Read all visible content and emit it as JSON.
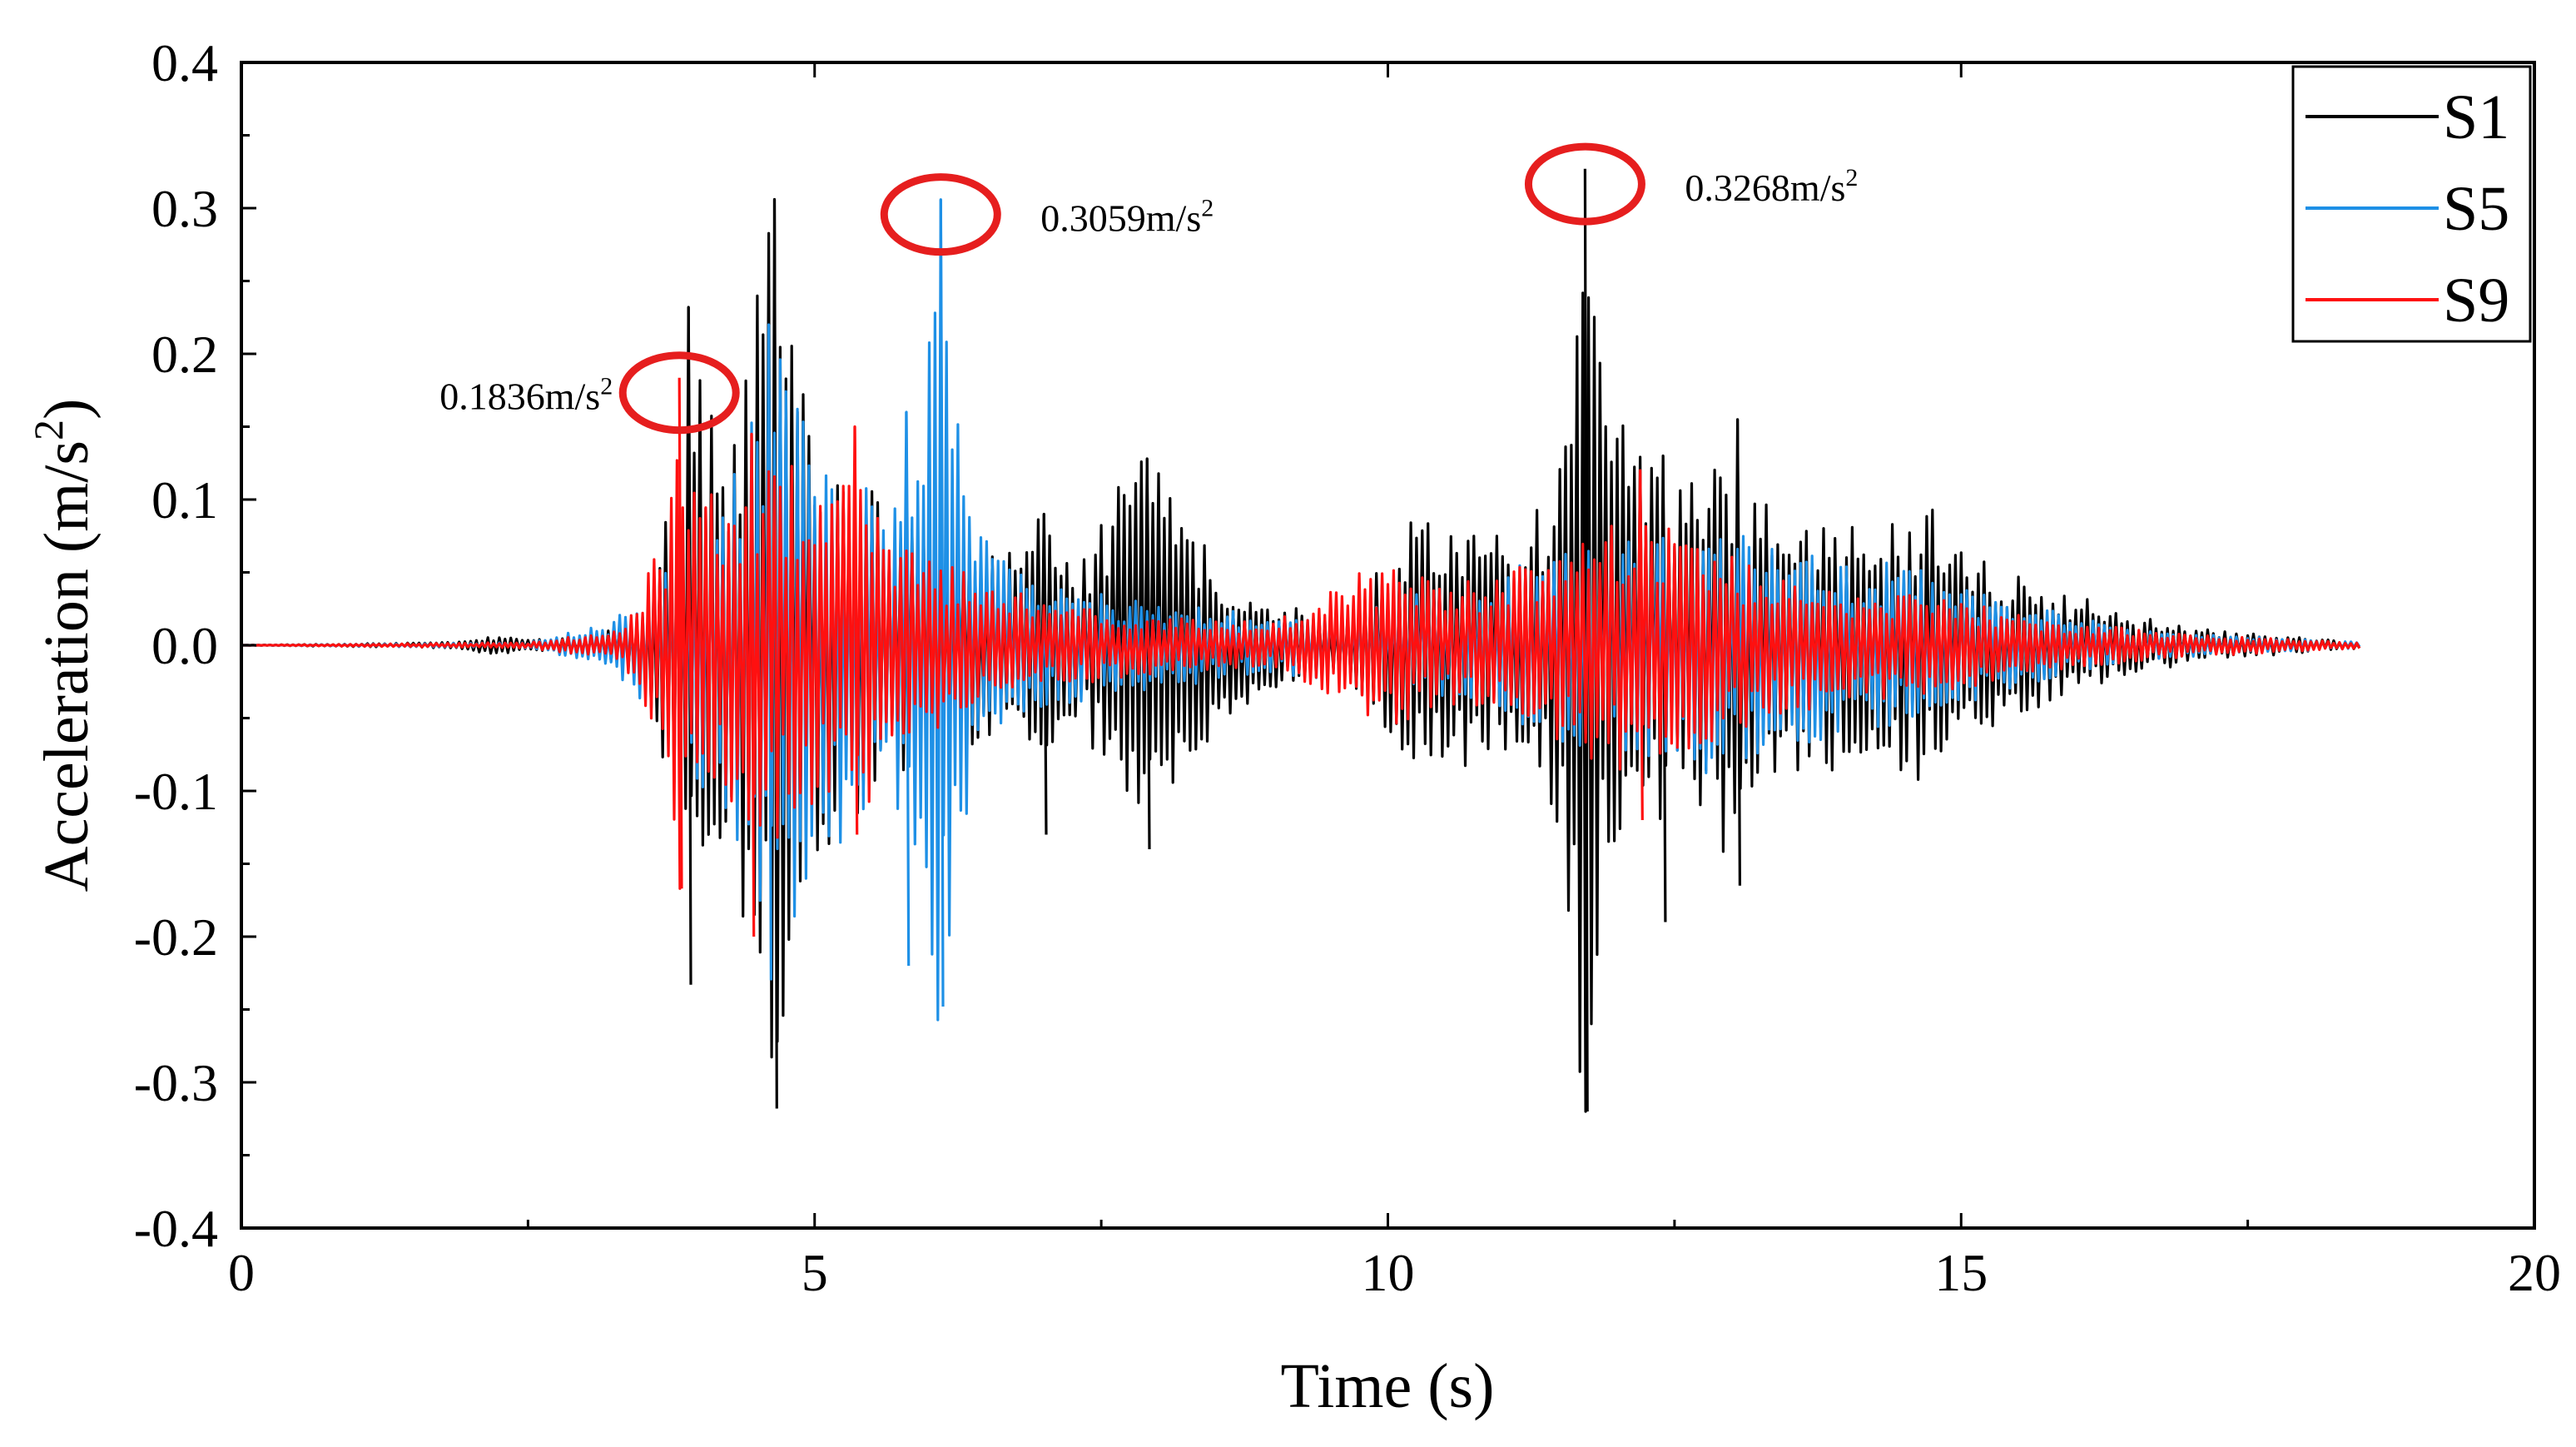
{
  "chart_data": {
    "type": "line",
    "title": "",
    "xlabel": "Time (s)",
    "ylabel_main": "Acceleration (m/s",
    "ylabel_sup": "2",
    "ylabel_close": ")",
    "xlim": [
      0,
      20
    ],
    "ylim": [
      -0.4,
      0.4
    ],
    "xticks": [
      0,
      5,
      10,
      15,
      20
    ],
    "xtick_labels": [
      "0",
      "5",
      "10",
      "15",
      "20"
    ],
    "yticks": [
      -0.4,
      -0.3,
      -0.2,
      -0.1,
      0.0,
      0.1,
      0.2,
      0.3,
      0.4
    ],
    "ytick_labels": [
      "-0.4",
      "-0.3",
      "-0.2",
      "-0.1",
      "0.0",
      "0.1",
      "0.2",
      "0.3",
      "0.4"
    ],
    "grid": false,
    "legend_position": "top-right",
    "series": [
      {
        "name": "S1",
        "color": "#000000",
        "envelope": [
          [
            0,
            0
          ],
          [
            1.8,
            0.002
          ],
          [
            2.2,
            0.006
          ],
          [
            3.0,
            0.004
          ],
          [
            3.5,
            0.02
          ],
          [
            3.8,
            0.12
          ],
          [
            3.9,
            0.23
          ],
          [
            4.2,
            0.14
          ],
          [
            4.4,
            0.2
          ],
          [
            4.65,
            0.32
          ],
          [
            4.9,
            0.18
          ],
          [
            5.3,
            0.12
          ],
          [
            5.8,
            0.09
          ],
          [
            6.2,
            0.08
          ],
          [
            6.6,
            0.06
          ],
          [
            7.0,
            0.09
          ],
          [
            7.3,
            0.05
          ],
          [
            7.6,
            0.11
          ],
          [
            7.9,
            0.13
          ],
          [
            8.2,
            0.1
          ],
          [
            8.5,
            0.06
          ],
          [
            9.0,
            0.03
          ],
          [
            9.5,
            0.02
          ],
          [
            10.0,
            0.06
          ],
          [
            10.3,
            0.1
          ],
          [
            10.8,
            0.08
          ],
          [
            11.2,
            0.07
          ],
          [
            11.5,
            0.14
          ],
          [
            11.7,
            0.33
          ],
          [
            11.85,
            0.2
          ],
          [
            12.2,
            0.16
          ],
          [
            12.5,
            0.1
          ],
          [
            12.9,
            0.15
          ],
          [
            13.2,
            0.1
          ],
          [
            13.8,
            0.09
          ],
          [
            14.3,
            0.08
          ],
          [
            14.8,
            0.1
          ],
          [
            15.2,
            0.06
          ],
          [
            15.8,
            0.04
          ],
          [
            16.5,
            0.02
          ],
          [
            17.2,
            0.01
          ],
          [
            18.5,
            0.002
          ]
        ],
        "peaks": [
          [
            3.9,
            0.232,
            -0.233
          ],
          [
            4.65,
            0.306,
            -0.318
          ],
          [
            7.0,
            0.09,
            -0.13
          ],
          [
            7.9,
            0.128,
            -0.14
          ],
          [
            11.72,
            0.327,
            -0.32
          ],
          [
            12.4,
            0.13,
            -0.19
          ],
          [
            13.05,
            0.155,
            -0.165
          ]
        ]
      },
      {
        "name": "S5",
        "color": "#1e90e6",
        "envelope": [
          [
            0,
            0
          ],
          [
            2.5,
            0.002
          ],
          [
            3.2,
            0.015
          ],
          [
            3.6,
            0.05
          ],
          [
            4.0,
            0.1
          ],
          [
            4.4,
            0.16
          ],
          [
            4.6,
            0.22
          ],
          [
            5.0,
            0.16
          ],
          [
            5.3,
            0.13
          ],
          [
            5.6,
            0.1
          ],
          [
            5.9,
            0.16
          ],
          [
            6.1,
            0.3
          ],
          [
            6.3,
            0.12
          ],
          [
            6.7,
            0.06
          ],
          [
            7.2,
            0.04
          ],
          [
            8.0,
            0.03
          ],
          [
            9.0,
            0.02
          ],
          [
            10.0,
            0.03
          ],
          [
            11.0,
            0.05
          ],
          [
            11.6,
            0.07
          ],
          [
            12.3,
            0.08
          ],
          [
            12.9,
            0.09
          ],
          [
            13.5,
            0.07
          ],
          [
            14.2,
            0.06
          ],
          [
            14.8,
            0.05
          ],
          [
            15.5,
            0.03
          ],
          [
            16.5,
            0.01
          ],
          [
            18.5,
            0.002
          ]
        ],
        "peaks": [
          [
            4.6,
            0.22,
            -0.23
          ],
          [
            6.1,
            0.3059,
            -0.248
          ],
          [
            5.8,
            0.16,
            -0.22
          ]
        ]
      },
      {
        "name": "S9",
        "color": "#ff1010",
        "envelope": [
          [
            0,
            0
          ],
          [
            2.5,
            0.002
          ],
          [
            3.3,
            0.01
          ],
          [
            3.7,
            0.08
          ],
          [
            3.82,
            0.18
          ],
          [
            4.0,
            0.1
          ],
          [
            4.3,
            0.12
          ],
          [
            4.6,
            0.14
          ],
          [
            5.0,
            0.11
          ],
          [
            5.4,
            0.12
          ],
          [
            5.8,
            0.07
          ],
          [
            6.3,
            0.05
          ],
          [
            7.0,
            0.03
          ],
          [
            8.0,
            0.02
          ],
          [
            9.0,
            0.015
          ],
          [
            9.5,
            0.04
          ],
          [
            10.0,
            0.06
          ],
          [
            10.5,
            0.04
          ],
          [
            11.0,
            0.05
          ],
          [
            11.5,
            0.07
          ],
          [
            12.0,
            0.09
          ],
          [
            12.3,
            0.09
          ],
          [
            12.8,
            0.07
          ],
          [
            13.3,
            0.05
          ],
          [
            14.0,
            0.04
          ],
          [
            15.0,
            0.03
          ],
          [
            16.0,
            0.015
          ],
          [
            17.0,
            0.008
          ],
          [
            18.5,
            0.002
          ]
        ],
        "peaks": [
          [
            3.82,
            0.1836,
            -0.167
          ],
          [
            4.45,
            0.145,
            -0.2
          ],
          [
            5.35,
            0.15,
            -0.13
          ],
          [
            12.2,
            0.12,
            -0.12
          ]
        ]
      }
    ],
    "annotations": [
      {
        "x": 3.82,
        "y": 0.1836,
        "text": "0.1836m/s",
        "sup": "2",
        "text_side": "left"
      },
      {
        "x": 6.1,
        "y": 0.3059,
        "text": "0.3059m/s",
        "sup": "2",
        "text_side": "right"
      },
      {
        "x": 11.72,
        "y": 0.3268,
        "text": "0.3268m/s",
        "sup": "2",
        "text_side": "right"
      }
    ],
    "annotation_color": "#e61e1e"
  }
}
